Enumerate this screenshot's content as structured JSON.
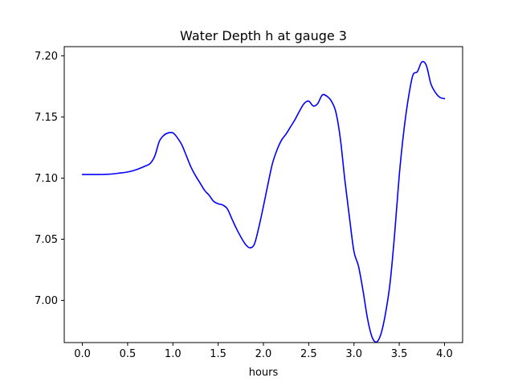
{
  "chart_data": {
    "type": "line",
    "title": "Water Depth h at gauge 3",
    "xlabel": "hours",
    "ylabel": "",
    "xlim": [
      -0.2,
      4.2
    ],
    "ylim": [
      6.9655,
      7.2075
    ],
    "xticks": [
      0.0,
      0.5,
      1.0,
      1.5,
      2.0,
      2.5,
      3.0,
      3.5,
      4.0
    ],
    "xtick_labels": [
      "0.0",
      "0.5",
      "1.0",
      "1.5",
      "2.0",
      "2.5",
      "3.0",
      "3.5",
      "4.0"
    ],
    "yticks": [
      7.0,
      7.05,
      7.1,
      7.15,
      7.2
    ],
    "ytick_labels": [
      "7.00",
      "7.05",
      "7.10",
      "7.15",
      "7.20"
    ],
    "grid": false,
    "legend": "none",
    "series": [
      {
        "color": "#0000ff",
        "x": [
          0.0,
          0.1,
          0.2,
          0.3,
          0.4,
          0.5,
          0.6,
          0.7,
          0.75,
          0.8,
          0.85,
          0.9,
          0.95,
          1.0,
          1.05,
          1.1,
          1.15,
          1.2,
          1.25,
          1.3,
          1.35,
          1.4,
          1.45,
          1.5,
          1.55,
          1.6,
          1.65,
          1.7,
          1.75,
          1.8,
          1.85,
          1.9,
          1.95,
          2.0,
          2.05,
          2.1,
          2.15,
          2.2,
          2.25,
          2.3,
          2.35,
          2.4,
          2.45,
          2.5,
          2.55,
          2.6,
          2.65,
          2.7,
          2.75,
          2.8,
          2.85,
          2.9,
          2.95,
          3.0,
          3.05,
          3.1,
          3.15,
          3.2,
          3.25,
          3.3,
          3.35,
          3.4,
          3.45,
          3.5,
          3.55,
          3.6,
          3.65,
          3.7,
          3.75,
          3.8,
          3.85,
          3.9,
          3.95,
          4.0
        ],
        "y": [
          7.103,
          7.103,
          7.103,
          7.1032,
          7.104,
          7.105,
          7.107,
          7.11,
          7.112,
          7.118,
          7.13,
          7.135,
          7.137,
          7.137,
          7.133,
          7.127,
          7.118,
          7.109,
          7.102,
          7.096,
          7.09,
          7.086,
          7.081,
          7.079,
          7.078,
          7.075,
          7.067,
          7.059,
          7.052,
          7.046,
          7.043,
          7.046,
          7.06,
          7.077,
          7.095,
          7.112,
          7.123,
          7.131,
          7.136,
          7.142,
          7.148,
          7.155,
          7.161,
          7.163,
          7.159,
          7.161,
          7.168,
          7.167,
          7.163,
          7.154,
          7.132,
          7.098,
          7.068,
          7.04,
          7.028,
          7.008,
          6.985,
          6.97,
          6.966,
          6.973,
          6.99,
          7.015,
          7.055,
          7.102,
          7.138,
          7.165,
          7.184,
          7.187,
          7.195,
          7.192,
          7.177,
          7.17,
          7.166,
          7.165
        ]
      }
    ]
  }
}
